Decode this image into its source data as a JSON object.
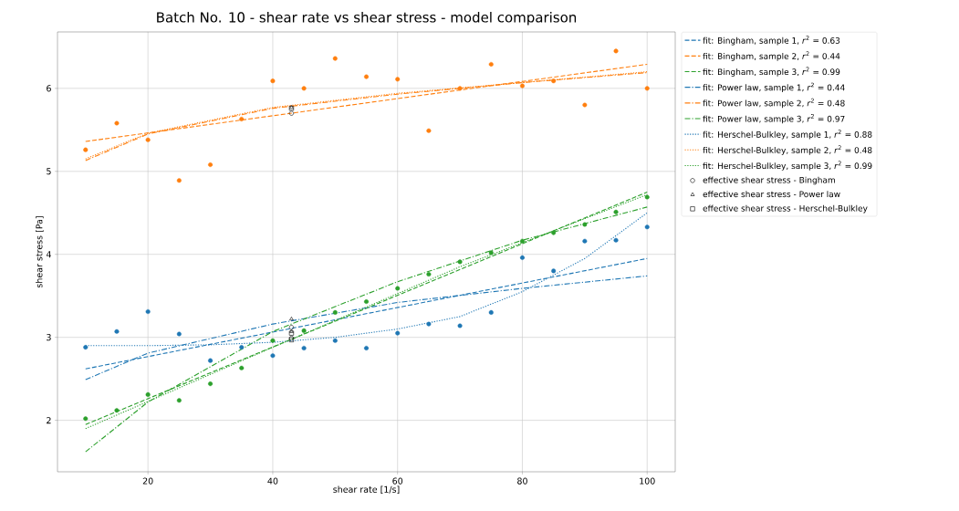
{
  "chart_data": {
    "type": "line",
    "title": "Batch No. 10 - shear rate vs shear stress - model comparison",
    "xlabel": "shear rate [1/s]",
    "ylabel": "shear stress [Pa]",
    "xlim": [
      5.5,
      104.5
    ],
    "ylim": [
      1.38,
      6.68
    ],
    "xticks": [
      20,
      40,
      60,
      80,
      100
    ],
    "yticks": [
      2,
      3,
      4,
      5,
      6
    ],
    "grid": true,
    "legend": "right",
    "series": [
      {
        "type": "scatter",
        "marker": "circle",
        "color": "#1f77b4",
        "x": [
          10,
          15,
          20,
          25,
          30,
          35,
          40,
          45,
          50,
          55,
          60,
          65,
          70,
          75,
          80,
          85,
          90,
          95,
          100
        ],
        "values": [
          2.88,
          3.07,
          3.31,
          3.04,
          2.72,
          2.88,
          2.78,
          2.87,
          2.96,
          2.87,
          3.05,
          3.16,
          3.14,
          3.3,
          3.96,
          3.8,
          4.16,
          4.17,
          4.33
        ]
      },
      {
        "type": "scatter",
        "marker": "circle",
        "color": "#ff7f0e",
        "x": [
          10,
          15,
          20,
          25,
          30,
          35,
          40,
          45,
          50,
          55,
          60,
          65,
          70,
          75,
          80,
          85,
          90,
          95,
          100
        ],
        "values": [
          5.26,
          5.58,
          5.38,
          4.89,
          5.08,
          5.63,
          6.09,
          6.0,
          6.36,
          6.14,
          6.11,
          5.49,
          6.0,
          6.29,
          6.03,
          6.09,
          5.8,
          6.45,
          6.0
        ]
      },
      {
        "type": "scatter",
        "marker": "circle",
        "color": "#2ca02c",
        "x": [
          10,
          15,
          20,
          25,
          30,
          35,
          40,
          45,
          50,
          55,
          60,
          65,
          70,
          75,
          80,
          85,
          90,
          95,
          100
        ],
        "values": [
          2.02,
          2.12,
          2.31,
          2.24,
          2.44,
          2.63,
          2.96,
          3.08,
          3.3,
          3.43,
          3.59,
          3.76,
          3.91,
          4.02,
          4.16,
          4.26,
          4.36,
          4.51,
          4.69
        ]
      },
      {
        "line_style": "dashed",
        "name": "fit: Bingham, sample 1, *r*$^{2}$ = 0.63",
        "color": "#1f77b4",
        "x": [
          10,
          100
        ],
        "values": [
          2.62,
          3.95
        ]
      },
      {
        "line_style": "dashed",
        "name": "fit: Bingham, sample 2, *r*$^{2}$ = 0.44",
        "color": "#ff7f0e",
        "x": [
          10,
          100
        ],
        "values": [
          5.36,
          6.29
        ]
      },
      {
        "line_style": "dashed",
        "name": "fit: Bingham, sample 3, *r*$^{2}$ = 0.99",
        "color": "#2ca02c",
        "x": [
          10,
          100
        ],
        "values": [
          1.95,
          4.75
        ]
      },
      {
        "line_style": "dashdot",
        "name": "fit: Power law, sample 1, *r*$^{2}$ = 0.44",
        "color": "#1f77b4",
        "x": [
          10,
          20,
          40,
          60,
          80,
          100
        ],
        "values": [
          2.49,
          2.81,
          3.16,
          3.42,
          3.59,
          3.74
        ]
      },
      {
        "line_style": "dashdot",
        "name": "fit: Power law, sample 2, *r*$^{2}$ = 0.48",
        "color": "#ff7f0e",
        "x": [
          10,
          20,
          40,
          60,
          80,
          100
        ],
        "values": [
          5.13,
          5.45,
          5.76,
          5.93,
          6.07,
          6.19
        ]
      },
      {
        "line_style": "dashdot",
        "name": "fit: Power law, sample 3, *r*$^{2}$ = 0.97",
        "color": "#2ca02c",
        "x": [
          10,
          20,
          40,
          60,
          80,
          100
        ],
        "values": [
          1.62,
          2.22,
          3.07,
          3.67,
          4.17,
          4.57
        ]
      },
      {
        "line_style": "dotted",
        "name": "fit: Herschel-Bulkley, sample 1, *r*$^{2}$ = 0.88",
        "color": "#1f77b4",
        "x": [
          10,
          20,
          30,
          40,
          50,
          60,
          70,
          80,
          90,
          100
        ],
        "values": [
          2.9,
          2.9,
          2.91,
          2.94,
          3.0,
          3.1,
          3.25,
          3.55,
          3.95,
          4.5
        ]
      },
      {
        "line_style": "dotted",
        "name": "fit: Herschel-Bulkley, sample 2, *r*$^{2}$ = 0.48",
        "color": "#ff7f0e",
        "x": [
          10,
          20,
          40,
          60,
          80,
          100
        ],
        "values": [
          5.15,
          5.46,
          5.77,
          5.94,
          6.07,
          6.2
        ]
      },
      {
        "line_style": "dotted",
        "name": "fit: Herschel-Bulkley, sample 3, *r*$^{2}$ = 0.99",
        "color": "#2ca02c",
        "x": [
          10,
          40,
          70,
          100
        ],
        "values": [
          1.9,
          2.88,
          3.85,
          4.72
        ]
      },
      {
        "type": "scatter",
        "marker": "circle",
        "name": "effective shear stress - Bingham",
        "color": "#000000",
        "x": [
          43,
          43,
          43
        ],
        "values": [
          5.7,
          3.12,
          2.99
        ]
      },
      {
        "type": "scatter",
        "marker": "triangle",
        "name": "effective shear stress - Power law",
        "color": "#000000",
        "x": [
          43,
          43,
          43
        ],
        "values": [
          5.77,
          3.22,
          3.07
        ]
      },
      {
        "type": "scatter",
        "marker": "square",
        "name": "effective shear stress - Herschel-Bulkley",
        "color": "#000000",
        "x": [
          43,
          43,
          43
        ],
        "values": [
          5.76,
          3.05,
          2.97
        ]
      }
    ]
  }
}
